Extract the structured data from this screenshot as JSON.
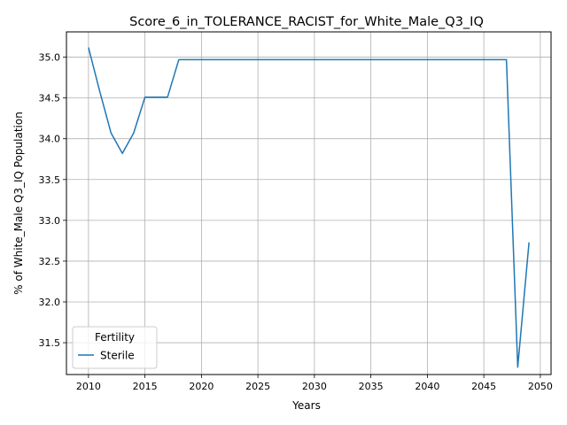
{
  "chart_data": {
    "type": "line",
    "title": "Score_6_in_TOLERANCE_RACIST_for_White_Male_Q3_IQ",
    "xlabel": "Years",
    "ylabel": "% of White_Male Q3_IQ Population",
    "xlim": [
      2008.05,
      2050.95
    ],
    "ylim": [
      31.11,
      35.31
    ],
    "x_ticks": [
      2010,
      2015,
      2020,
      2025,
      2030,
      2035,
      2040,
      2045,
      2050
    ],
    "y_ticks": [
      31.5,
      32.0,
      32.5,
      33.0,
      33.5,
      34.0,
      34.5,
      35.0
    ],
    "x_tick_labels": [
      "2010",
      "2015",
      "2020",
      "2025",
      "2030",
      "2035",
      "2040",
      "2045",
      "2050"
    ],
    "y_tick_labels": [
      "31.5",
      "32.0",
      "32.5",
      "33.0",
      "33.5",
      "34.0",
      "34.5",
      "35.0"
    ],
    "grid": true,
    "legend": {
      "title": "Fertility",
      "position": "lower left"
    },
    "series": [
      {
        "name": "Sterile",
        "color": "#1f77b4",
        "x": [
          2010,
          2011,
          2012,
          2013,
          2014,
          2015,
          2016,
          2017,
          2018,
          2019,
          2020,
          2021,
          2022,
          2023,
          2024,
          2025,
          2026,
          2027,
          2028,
          2029,
          2030,
          2031,
          2032,
          2033,
          2034,
          2035,
          2036,
          2037,
          2038,
          2039,
          2040,
          2041,
          2042,
          2043,
          2044,
          2045,
          2046,
          2047,
          2048,
          2049
        ],
        "values": [
          35.12,
          34.58,
          34.07,
          33.82,
          34.07,
          34.51,
          34.51,
          34.51,
          34.97,
          34.97,
          34.97,
          34.97,
          34.97,
          34.97,
          34.97,
          34.97,
          34.97,
          34.97,
          34.97,
          34.97,
          34.97,
          34.97,
          34.97,
          34.97,
          34.97,
          34.97,
          34.97,
          34.97,
          34.97,
          34.97,
          34.97,
          34.97,
          34.97,
          34.97,
          34.97,
          34.97,
          34.97,
          34.97,
          31.2,
          32.73
        ]
      }
    ]
  }
}
